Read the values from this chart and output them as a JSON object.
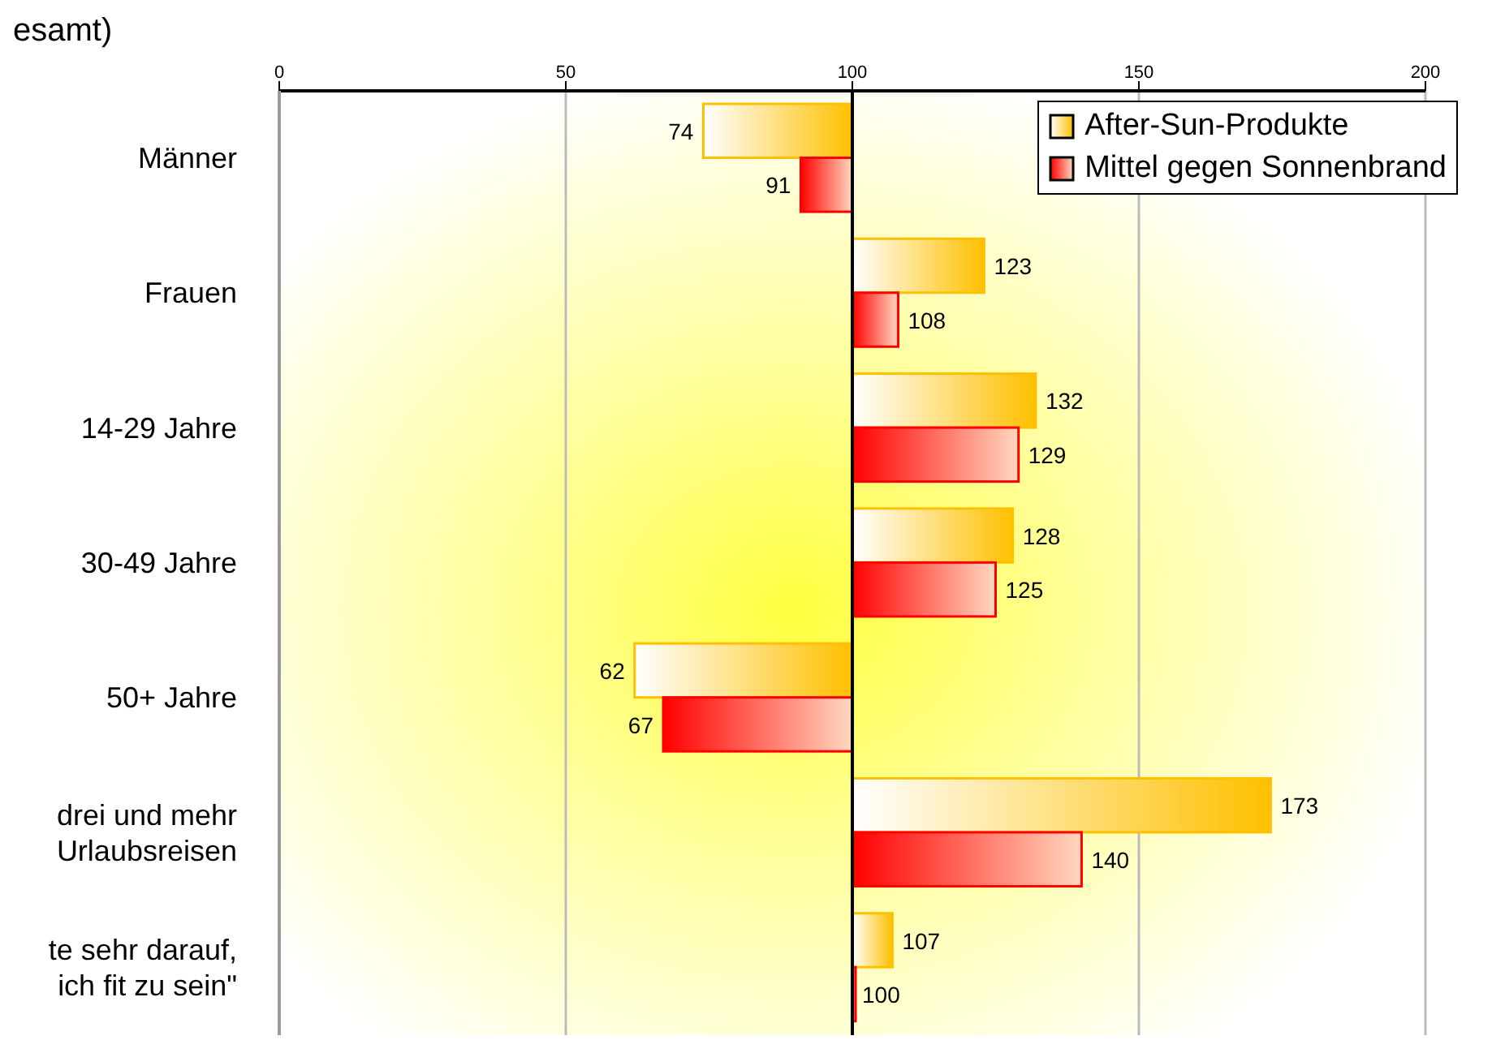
{
  "chart_data": {
    "type": "bar",
    "orientation": "horizontal",
    "title": "esamt)",
    "categories": [
      "Männer",
      "Frauen",
      "14-29 Jahre",
      "30-49 Jahre",
      "50+ Jahre",
      "drei und mehr\nUrlaubsreisen",
      "te sehr darauf,\nich fit zu sein\""
    ],
    "series": [
      {
        "name": "After-Sun-Produkte",
        "color": "#ffc000",
        "base": [
          100,
          100,
          100,
          100,
          100,
          100,
          100
        ],
        "values": [
          -26,
          23,
          32,
          28,
          -38,
          73,
          7
        ],
        "value_labels": [
          "74",
          "123",
          "132",
          "128",
          "62",
          "173",
          "107"
        ]
      },
      {
        "name": "Mittel gegen Sonnenbrand",
        "color": "#ff0000",
        "base": [
          100,
          100,
          100,
          100,
          100,
          100,
          100
        ],
        "values": [
          -9,
          8,
          29,
          25,
          -33,
          40,
          0
        ],
        "value_labels": [
          "91",
          "108",
          "129",
          "125",
          "67",
          "140",
          "100"
        ]
      }
    ],
    "ref_lines": [
      {
        "axis": "x",
        "value": 100,
        "color": "#000000"
      }
    ],
    "xlim": [
      0,
      200
    ],
    "xticks": [
      0,
      50,
      100,
      150,
      200
    ],
    "grid": "x",
    "legend": "top right"
  }
}
